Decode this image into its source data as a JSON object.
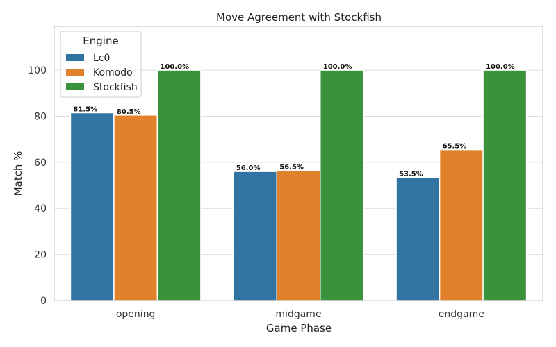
{
  "chart_data": {
    "type": "bar",
    "title": "Move Agreement with Stockfish",
    "xlabel": "Game Phase",
    "ylabel": "Match %",
    "categories": [
      "opening",
      "midgame",
      "endgame"
    ],
    "series": [
      {
        "name": "Lc0",
        "values": [
          81.5,
          56.0,
          53.5
        ],
        "labels": [
          "81.5%",
          "56.0%",
          "53.5%"
        ],
        "color": "#3274a1"
      },
      {
        "name": "Komodo",
        "values": [
          80.5,
          56.5,
          65.5
        ],
        "labels": [
          "80.5%",
          "56.5%",
          "65.5%"
        ],
        "color": "#e1812c"
      },
      {
        "name": "Stockfish",
        "values": [
          100.0,
          100.0,
          100.0
        ],
        "labels": [
          "100.0%",
          "100.0%",
          "100.0%"
        ],
        "color": "#3a923a"
      }
    ],
    "yticks": [
      0,
      20,
      40,
      60,
      80,
      100
    ],
    "ylim": [
      0,
      119
    ],
    "grid": true,
    "legend": {
      "title": "Engine",
      "placement": "top-left"
    }
  }
}
